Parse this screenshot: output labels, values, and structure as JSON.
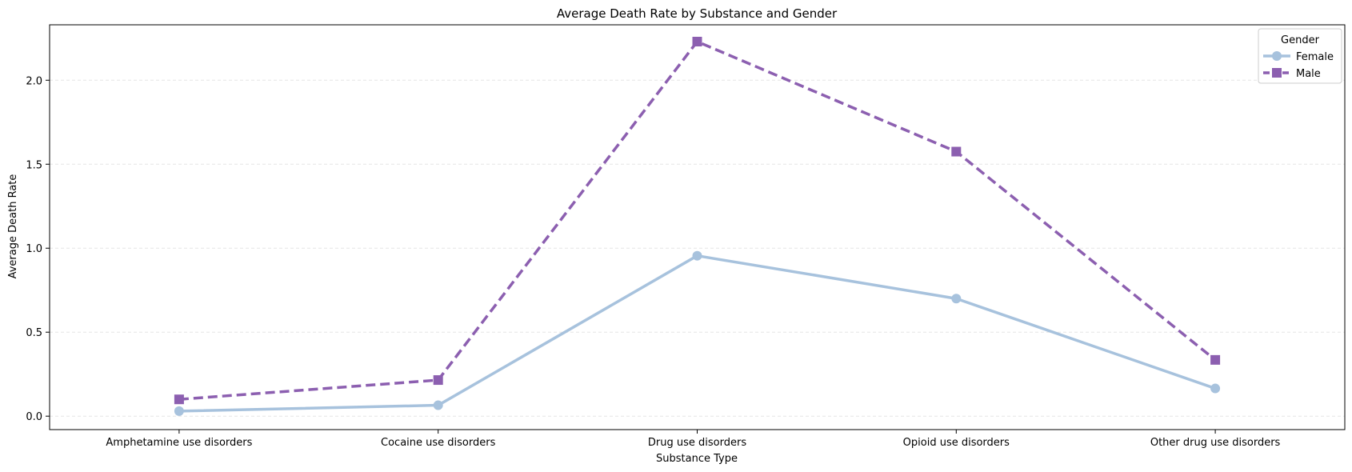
{
  "chart_data": {
    "type": "line",
    "title": "Average Death Rate by Substance and Gender",
    "xlabel": "Substance Type",
    "ylabel": "Average Death Rate",
    "categories": [
      "Amphetamine use disorders",
      "Cocaine use disorders",
      "Drug use disorders",
      "Opioid use disorders",
      "Other drug use disorders"
    ],
    "ylim": [
      -0.08,
      2.33
    ],
    "yticks": [
      0.0,
      0.5,
      1.0,
      1.5,
      2.0
    ],
    "ytick_labels": [
      "0.0",
      "0.5",
      "1.0",
      "1.5",
      "2.0"
    ],
    "grid": "y-dashed",
    "legend": {
      "title": "Gender",
      "placement": "top-right"
    },
    "series": [
      {
        "name": "Female",
        "values": [
          0.03,
          0.065,
          0.955,
          0.7,
          0.165
        ],
        "color": "#a7c2dd",
        "marker": "circle",
        "line_style": "solid"
      },
      {
        "name": "Male",
        "values": [
          0.1,
          0.215,
          2.23,
          1.575,
          0.335
        ],
        "color": "#8c5fb0",
        "marker": "square",
        "line_style": "dashed"
      }
    ]
  }
}
